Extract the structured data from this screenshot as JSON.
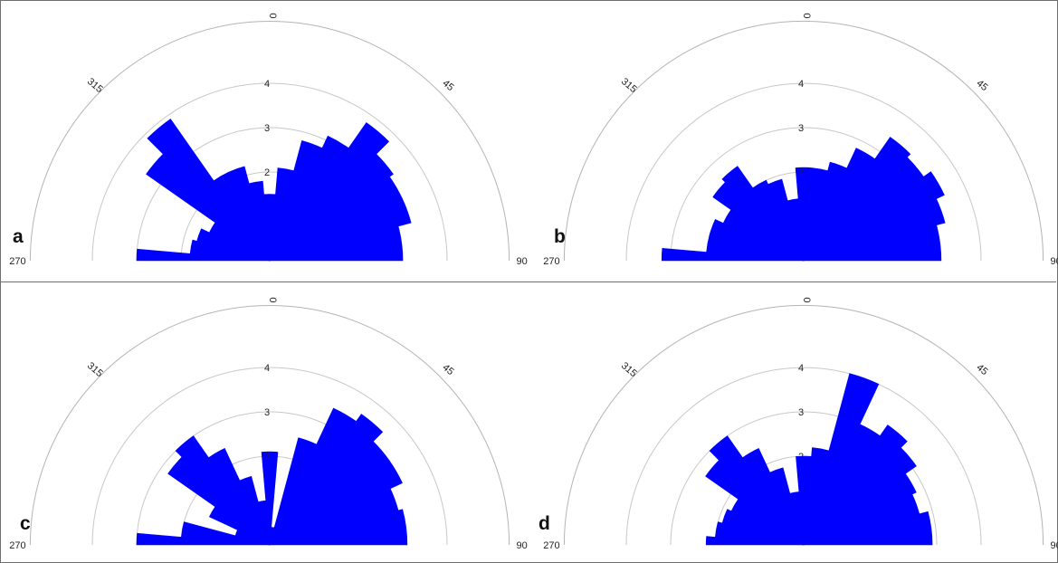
{
  "chart_data": [
    {
      "type": "rose",
      "panel_label": "a",
      "angle_ticks": [
        "270",
        "315",
        "0",
        "45",
        "90"
      ],
      "radial_ticks": [
        "2",
        "3",
        "4"
      ],
      "colors": {
        "bars": "#0000ff"
      },
      "sectors": [
        {
          "dir": 270,
          "value": 3.0
        },
        {
          "dir": 280,
          "value": 1.8
        },
        {
          "dir": 290,
          "value": 1.7
        },
        {
          "dir": 300,
          "value": 1.5
        },
        {
          "dir": 310,
          "value": 3.4
        },
        {
          "dir": 320,
          "value": 3.9
        },
        {
          "dir": 330,
          "value": 2.2
        },
        {
          "dir": 340,
          "value": 2.2
        },
        {
          "dir": 350,
          "value": 1.8
        },
        {
          "dir": 0,
          "value": 1.5
        },
        {
          "dir": 10,
          "value": 2.1
        },
        {
          "dir": 20,
          "value": 2.8
        },
        {
          "dir": 30,
          "value": 3.1
        },
        {
          "dir": 40,
          "value": 3.8
        },
        {
          "dir": 50,
          "value": 3.4
        },
        {
          "dir": 60,
          "value": 3.3
        },
        {
          "dir": 70,
          "value": 3.3
        },
        {
          "dir": 80,
          "value": 3.0
        }
      ]
    },
    {
      "type": "rose",
      "panel_label": "b",
      "angle_ticks": [
        "270",
        "315",
        "0",
        "45",
        "90"
      ],
      "radial_ticks": [
        "2",
        "3",
        "4"
      ],
      "colors": {
        "bars": "#0000ff"
      },
      "sectors": [
        {
          "dir": 270,
          "value": 3.2
        },
        {
          "dir": 280,
          "value": 2.2
        },
        {
          "dir": 290,
          "value": 2.2
        },
        {
          "dir": 300,
          "value": 2.0
        },
        {
          "dir": 310,
          "value": 2.5
        },
        {
          "dir": 320,
          "value": 2.6
        },
        {
          "dir": 330,
          "value": 2.0
        },
        {
          "dir": 340,
          "value": 1.9
        },
        {
          "dir": 350,
          "value": 1.4
        },
        {
          "dir": 0,
          "value": 2.1
        },
        {
          "dir": 10,
          "value": 2.1
        },
        {
          "dir": 20,
          "value": 2.3
        },
        {
          "dir": 30,
          "value": 2.8
        },
        {
          "dir": 40,
          "value": 3.4
        },
        {
          "dir": 50,
          "value": 3.3
        },
        {
          "dir": 60,
          "value": 3.5
        },
        {
          "dir": 70,
          "value": 3.3
        },
        {
          "dir": 80,
          "value": 3.1
        }
      ]
    },
    {
      "type": "rose",
      "panel_label": "c",
      "angle_ticks": [
        "270",
        "315",
        "0",
        "45",
        "90"
      ],
      "radial_ticks": [
        "2",
        "3",
        "4"
      ],
      "colors": {
        "bars": "#0000ff"
      },
      "sectors": [
        {
          "dir": 270,
          "value": 3.0
        },
        {
          "dir": 280,
          "value": 2.0
        },
        {
          "dir": 290,
          "value": 0.8
        },
        {
          "dir": 300,
          "value": 1.5
        },
        {
          "dir": 310,
          "value": 2.8
        },
        {
          "dir": 320,
          "value": 3.0
        },
        {
          "dir": 330,
          "value": 2.4
        },
        {
          "dir": 340,
          "value": 1.6
        },
        {
          "dir": 350,
          "value": 1.0
        },
        {
          "dir": 0,
          "value": 2.1
        },
        {
          "dir": 10,
          "value": 0.4
        },
        {
          "dir": 20,
          "value": 2.5
        },
        {
          "dir": 30,
          "value": 3.4
        },
        {
          "dir": 40,
          "value": 3.6
        },
        {
          "dir": 50,
          "value": 3.3
        },
        {
          "dir": 60,
          "value": 3.3
        },
        {
          "dir": 70,
          "value": 3.0
        },
        {
          "dir": 80,
          "value": 3.1
        }
      ]
    },
    {
      "type": "rose",
      "panel_label": "d",
      "angle_ticks": [
        "270",
        "315",
        "0",
        "45",
        "90"
      ],
      "radial_ticks": [
        "2",
        "3",
        "4"
      ],
      "colors": {
        "bars": "#0000ff"
      },
      "sectors": [
        {
          "dir": 270,
          "value": 2.2
        },
        {
          "dir": 280,
          "value": 2.0
        },
        {
          "dir": 290,
          "value": 1.9
        },
        {
          "dir": 300,
          "value": 1.8
        },
        {
          "dir": 310,
          "value": 2.7
        },
        {
          "dir": 320,
          "value": 3.0
        },
        {
          "dir": 330,
          "value": 2.4
        },
        {
          "dir": 340,
          "value": 1.8
        },
        {
          "dir": 350,
          "value": 1.2
        },
        {
          "dir": 0,
          "value": 2.0
        },
        {
          "dir": 10,
          "value": 2.2
        },
        {
          "dir": 20,
          "value": 4.0
        },
        {
          "dir": 30,
          "value": 3.0
        },
        {
          "dir": 40,
          "value": 3.3
        },
        {
          "dir": 50,
          "value": 3.1
        },
        {
          "dir": 60,
          "value": 2.8
        },
        {
          "dir": 70,
          "value": 2.7
        },
        {
          "dir": 80,
          "value": 2.9
        }
      ]
    }
  ]
}
